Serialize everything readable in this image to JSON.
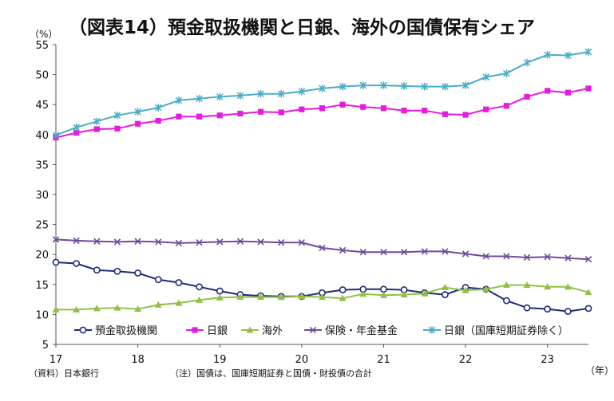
{
  "chart_data": {
    "type": "line",
    "title": "（図表14）預金取扱機関と日銀、海外の国債保有シェア",
    "ylabel": "（%）",
    "xlabel": "（年）",
    "ylim": [
      5,
      55
    ],
    "yticks": [
      5,
      10,
      15,
      20,
      25,
      30,
      35,
      40,
      45,
      50,
      55
    ],
    "xlim": [
      17,
      23.5
    ],
    "xticks": [
      17,
      18,
      19,
      20,
      21,
      22,
      23
    ],
    "xtick_labels": [
      "17",
      "18",
      "19",
      "20",
      "21",
      "22",
      "23"
    ],
    "grid": false,
    "legend_position": "bottom",
    "x": [
      17.0,
      17.25,
      17.5,
      17.75,
      18.0,
      18.25,
      18.5,
      18.75,
      19.0,
      19.25,
      19.5,
      19.75,
      20.0,
      20.25,
      20.5,
      20.75,
      21.0,
      21.25,
      21.5,
      21.75,
      22.0,
      22.25,
      22.5,
      22.75,
      23.0,
      23.25,
      23.5
    ],
    "series": [
      {
        "name": "預金取扱機関",
        "color": "#1f2a7a",
        "marker": "circle",
        "values": [
          18.7,
          18.5,
          17.4,
          17.2,
          16.9,
          15.8,
          15.3,
          14.6,
          13.9,
          13.3,
          13.1,
          13.0,
          13.0,
          13.6,
          14.1,
          14.2,
          14.2,
          14.1,
          13.6,
          13.3,
          14.5,
          14.2,
          12.3,
          11.1,
          10.9,
          10.5,
          11.0
        ]
      },
      {
        "name": "日銀",
        "color": "#e61ae0",
        "marker": "square",
        "values": [
          39.5,
          40.3,
          40.9,
          41.0,
          41.8,
          42.3,
          43.0,
          43.0,
          43.2,
          43.5,
          43.8,
          43.7,
          44.2,
          44.4,
          45.0,
          44.6,
          44.4,
          44.0,
          44.0,
          43.4,
          43.3,
          44.2,
          44.8,
          46.3,
          47.3,
          47.0,
          47.7
        ]
      },
      {
        "name": "海外",
        "color": "#92c046",
        "marker": "triangle",
        "values": [
          10.8,
          10.8,
          11.0,
          11.1,
          10.9,
          11.6,
          11.9,
          12.4,
          12.8,
          12.9,
          12.9,
          12.9,
          13.0,
          12.9,
          12.7,
          13.4,
          13.2,
          13.3,
          13.5,
          14.5,
          14.0,
          14.2,
          14.9,
          14.9,
          14.6,
          14.6,
          13.7
        ]
      },
      {
        "name": "保険・年金基金",
        "color": "#6e4c9b",
        "marker": "x",
        "values": [
          22.5,
          22.3,
          22.2,
          22.1,
          22.2,
          22.1,
          21.9,
          22.0,
          22.1,
          22.2,
          22.1,
          22.0,
          22.0,
          21.1,
          20.7,
          20.4,
          20.4,
          20.4,
          20.5,
          20.5,
          20.1,
          19.7,
          19.7,
          19.5,
          19.6,
          19.4,
          19.2
        ]
      },
      {
        "name": "日銀（国庫短期証券除く）",
        "color": "#4bacc6",
        "marker": "star",
        "values": [
          39.9,
          41.2,
          42.2,
          43.2,
          43.8,
          44.5,
          45.7,
          46.0,
          46.3,
          46.5,
          46.8,
          46.8,
          47.2,
          47.7,
          48.0,
          48.2,
          48.2,
          48.1,
          48.0,
          48.0,
          48.2,
          49.6,
          50.2,
          52.0,
          53.3,
          53.2,
          53.8
        ]
      }
    ]
  },
  "notes": {
    "source": "（資料）日本銀行",
    "footnote": "（注）国債は、国庫短期証券と国債・財投債の合計"
  }
}
